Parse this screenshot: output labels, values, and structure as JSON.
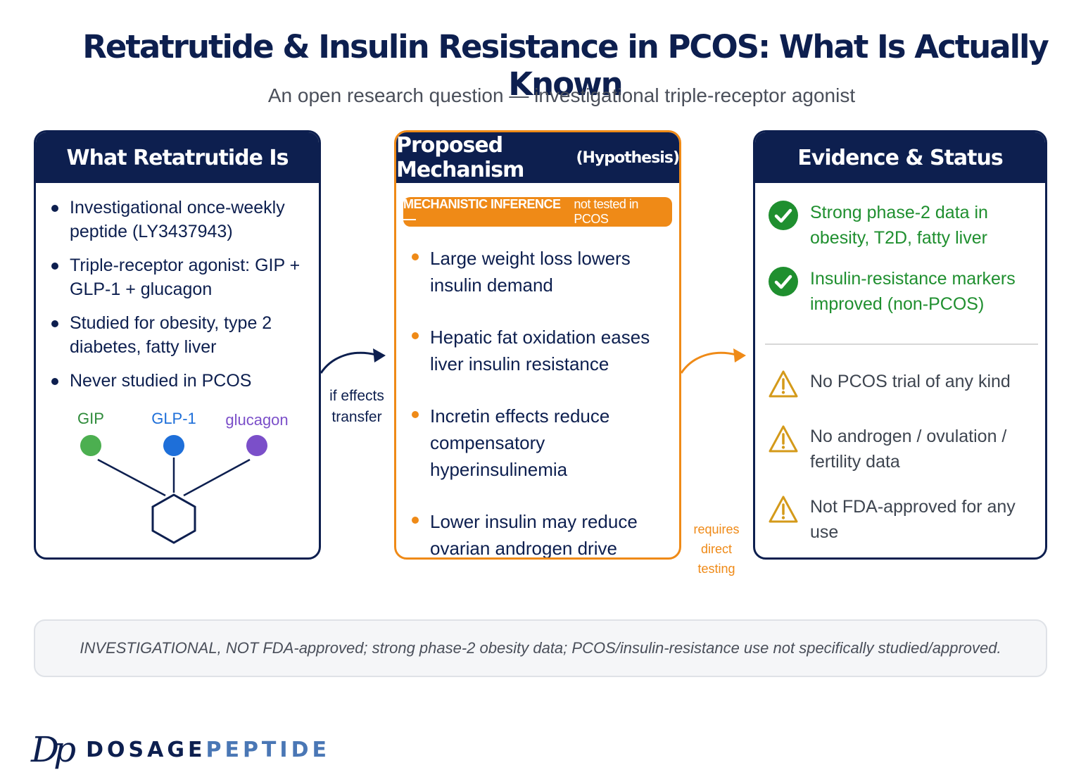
{
  "header": {
    "title": "Retatrutide & Insulin Resistance in PCOS: What Is Actually Known",
    "subtitle": "An open research question — investigational triple-receptor agonist"
  },
  "panels": {
    "left": {
      "title": "What Retatrutide Is",
      "bullets": [
        "Investigational once-weekly peptide (LY3437943)",
        "Triple-receptor agonist: GIP + GLP-1 + glucagon",
        "Studied for obesity, type 2 diabetes, fatty liver",
        "Never studied in PCOS"
      ],
      "receptors": [
        {
          "label": "GIP",
          "color": "#4caf50"
        },
        {
          "label": "GLP-1",
          "color": "#1e6fd9"
        },
        {
          "label": "glucagon",
          "color": "#7b4fc9"
        }
      ]
    },
    "middle": {
      "title": "Proposed Mechanism",
      "title_suffix": "(Hypothesis)",
      "badge_strong": "MECHANISTIC INFERENCE —",
      "badge_light": "not tested in PCOS",
      "bullets": [
        "Large weight loss lowers insulin demand",
        "Hepatic fat oxidation eases liver insulin resistance",
        "Incretin effects reduce compensatory hyperinsulinemia",
        "Lower insulin may reduce ovarian androgen drive"
      ]
    },
    "right": {
      "title": "Evidence & Status",
      "positives": [
        "Strong phase-2 data in obesity, T2D, fatty liver",
        "Insulin-resistance markers improved (non-PCOS)"
      ],
      "warnings": [
        "No PCOS trial of any kind",
        "No androgen / ovulation / fertility data",
        "Not FDA-approved for any use"
      ],
      "colors": {
        "positive": "#1f8f2f",
        "warning": "#d49a1a"
      }
    }
  },
  "connectors": {
    "first_label": "if effects transfer",
    "second_label": "requires direct testing"
  },
  "footer": {
    "note": "INVESTIGATIONAL, NOT FDA-approved; strong phase-2 obesity data; PCOS/insulin-resistance use not specifically studied/approved."
  },
  "brand": {
    "mark": "Dp",
    "name_part1": "DOSAGE",
    "name_part2": "PEPTIDE"
  },
  "theme": {
    "navy": "#0d1f4f",
    "orange": "#ef8a17"
  }
}
